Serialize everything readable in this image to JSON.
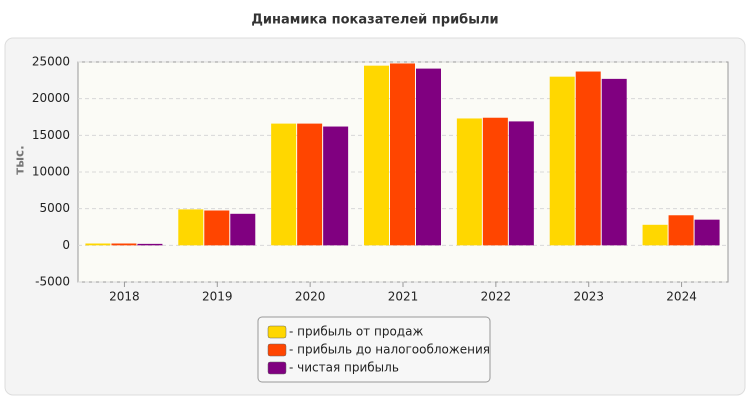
{
  "chart_data": {
    "type": "bar",
    "title": "Динамика показателей прибыли",
    "y_label": "тыс.",
    "categories": [
      "2018",
      "2019",
      "2020",
      "2021",
      "2022",
      "2023",
      "2024"
    ],
    "series": [
      {
        "name": "- прибыль от продаж",
        "color": "#ffd700",
        "values": [
          250,
          4900,
          16600,
          24500,
          17300,
          23000,
          2800
        ]
      },
      {
        "name": "- прибыль до налогообложения",
        "color": "#ff4500",
        "values": [
          250,
          4750,
          16600,
          24800,
          17400,
          23700,
          4100
        ]
      },
      {
        "name": "- чистая прибыль",
        "color": "#800080",
        "values": [
          200,
          4300,
          16200,
          24100,
          16900,
          22700,
          3500
        ]
      }
    ],
    "ylim": [
      -5000,
      25000
    ],
    "yticks": [
      -5000,
      0,
      5000,
      10000,
      15000,
      20000,
      25000
    ],
    "grid": true
  }
}
